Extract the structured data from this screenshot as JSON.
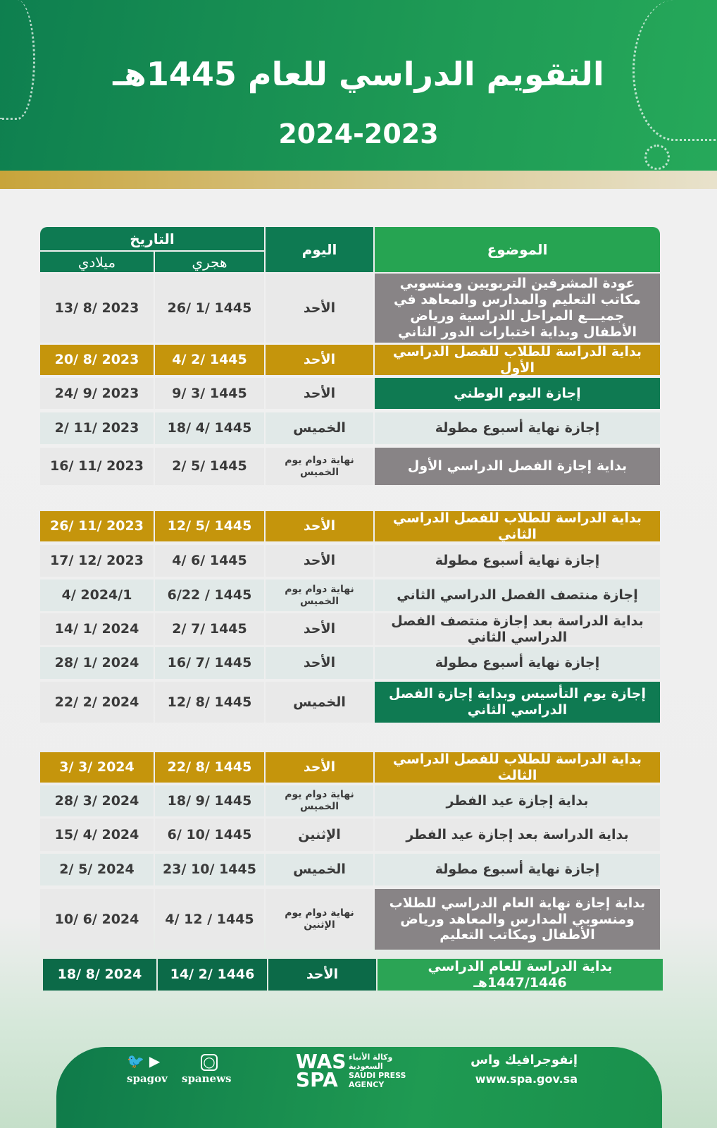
{
  "header": {
    "title": "التقويم الدراسي للعام 1445هـ",
    "years": "2024-2023"
  },
  "table": {
    "col_subject": "الموضوع",
    "col_day": "اليوم",
    "col_date": "التاريخ",
    "col_hijri": "هجري",
    "col_gregorian": "ميلادي",
    "rows": [
      {
        "subject": "عودة المشرفين التربويين ومنسوبي مكاتب التعليم والمدارس والمعاهد في جميـــع المراحل الدراسية ورياض الأطفال وبداية اختبارات الدور الثاني",
        "day": "الأحد",
        "hijri": "1445 /1 /26",
        "gregorian": "2023 /8 /13",
        "style": "gray"
      },
      {
        "subject": "بداية الدراسة للطلاب للفصل الدراسي الأول",
        "day": "الأحد",
        "hijri": "1445 /2 /4",
        "gregorian": "2023 /8 /20",
        "style": "gold"
      },
      {
        "subject": "إجازة اليوم الوطني",
        "day": "الأحد",
        "hijri": "1445 /3 /9",
        "gregorian": "2023 /9 /24",
        "style": "green"
      },
      {
        "subject": "إجازة نهاية أسبوع مطولة",
        "day": "الخميس",
        "hijri": "1445 /4 /18",
        "gregorian": "2023 /11 /2",
        "style": "blue"
      },
      {
        "subject": "بداية إجازة الفصل الدراسي الأول",
        "day": "نهاية دوام يوم الخميس",
        "hijri": "1445 /5 /2",
        "gregorian": "2023 /11 /16",
        "style": "gray"
      },
      {
        "subject": "بداية الدراسة للطلاب للفصل الدراسي الثاني",
        "day": "الأحد",
        "hijri": "1445 /5 /12",
        "gregorian": "2023 /11 /26",
        "style": "gold"
      },
      {
        "subject": "إجازة نهاية أسبوع مطولة",
        "day": "الأحد",
        "hijri": "1445 /6 /4",
        "gregorian": "2023 /12 /17",
        "style": "light"
      },
      {
        "subject": "إجازة منتصف الفصل الدراسي الثاني",
        "day": "نهاية دوام يوم الخميس",
        "hijri": "1445 / 6/22",
        "gregorian": "2024/1 /4",
        "style": "blue"
      },
      {
        "subject": "بداية الدراسة بعد إجازة منتصف الفصل الدراسي الثاني",
        "day": "الأحد",
        "hijri": "1445 /7 /2",
        "gregorian": "2024 /1 /14",
        "style": "light"
      },
      {
        "subject": "إجازة نهاية أسبوع مطولة",
        "day": "الأحد",
        "hijri": "1445 /7 /16",
        "gregorian": "2024 /1 /28",
        "style": "blue"
      },
      {
        "subject": "إجازة يوم التأسيس وبداية إجازة الفصل الدراسي الثاني",
        "day": "الخميس",
        "hijri": "1445 /8 /12",
        "gregorian": "2024 /2 /22",
        "style": "green"
      },
      {
        "subject": "بداية الدراسة للطلاب للفصل الدراسي الثالث",
        "day": "الأحد",
        "hijri": "1445 /8 /22",
        "gregorian": "2024 /3 /3",
        "style": "gold"
      },
      {
        "subject": "بداية إجازة عيد الفطر",
        "day": "نهاية دوام يوم الخميس",
        "hijri": "1445 /9 /18",
        "gregorian": "2024 /3 /28",
        "style": "blue"
      },
      {
        "subject": "بداية الدراسة بعد إجازة عيد الفطر",
        "day": "الإثنين",
        "hijri": "1445 /10 /6",
        "gregorian": "2024 /4 /15",
        "style": "light"
      },
      {
        "subject": "إجازة نهاية أسبوع مطولة",
        "day": "الخميس",
        "hijri": "1445 /10 /23",
        "gregorian": "2024 /5 /2",
        "style": "blue"
      },
      {
        "subject": "بداية إجازة نهاية العام الدراسي للطلاب ومنسوبي المدارس والمعاهد ورياض الأطفال ومكاتب التعليم",
        "day": "نهاية دوام يوم الإثنين",
        "hijri": "1445 / 12 /4",
        "gregorian": "2024 /6 /10",
        "style": "gray"
      },
      {
        "subject": "بداية الدراسة للعام الدراسي 1447/1446هـ",
        "day": "الأحد",
        "hijri": "1446 /2 /14",
        "gregorian": "2024 /8 /18",
        "style": "final"
      }
    ]
  },
  "colors": {
    "gold": "#c5950c",
    "green": "#0f7a52",
    "gray": "#888486",
    "light": "#e9e9e9",
    "blue": "#e1e9e8",
    "final_subject": "#2ba455",
    "final_dates": "#0c6a48"
  },
  "footer": {
    "brand": "إنفوجرافيك واس",
    "url": "www.spa.gov.sa",
    "agency_ar": "وكالة الأنباء السعودية",
    "agency_en": "SAUDI PRESS AGENCY",
    "logo": "واس SPA",
    "handle1": "spanews",
    "handle2": "spagov"
  }
}
